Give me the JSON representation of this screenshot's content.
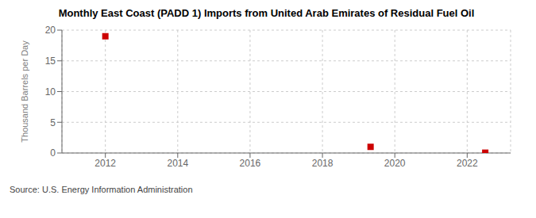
{
  "chart_data": {
    "type": "scatter",
    "title": "Monthly East Coast (PADD 1) Imports from United Arab Emirates of Residual Fuel Oil",
    "ylabel": "Thousand Barrels per Day",
    "annotations": [
      "Source: U.S. Energy Information Administration"
    ],
    "x": [
      2012.0,
      2019.33,
      2022.5
    ],
    "values": [
      19.0,
      1.0,
      0.05
    ],
    "color": "#cc0000",
    "marker": "square",
    "xlim": [
      2010.8,
      2023.2
    ],
    "ylim": [
      0,
      20
    ],
    "xticks": [
      2012,
      2014,
      2016,
      2018,
      2020,
      2022
    ],
    "yticks": [
      0,
      5,
      10,
      15,
      20
    ],
    "grid": true
  }
}
